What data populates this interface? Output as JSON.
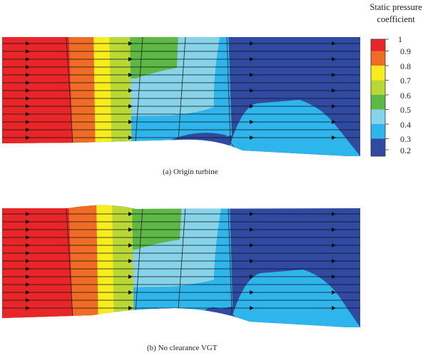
{
  "legend": {
    "title_line1": "Static pressure",
    "title_line2": "coefficient",
    "ticks": [
      "1",
      "0.9",
      "0.8",
      "0.7",
      "0.6",
      "0.5",
      "0.4",
      "0.3",
      "0.2"
    ],
    "colors": [
      "#e8262a",
      "#ef6c26",
      "#f7ed1e",
      "#b9d835",
      "#5db846",
      "#87d3ea",
      "#2db5ec",
      "#2f4aa0"
    ]
  },
  "panels": [
    {
      "caption": "(a) Origin turbine"
    },
    {
      "caption": "(b) No clearance VGT"
    }
  ]
}
